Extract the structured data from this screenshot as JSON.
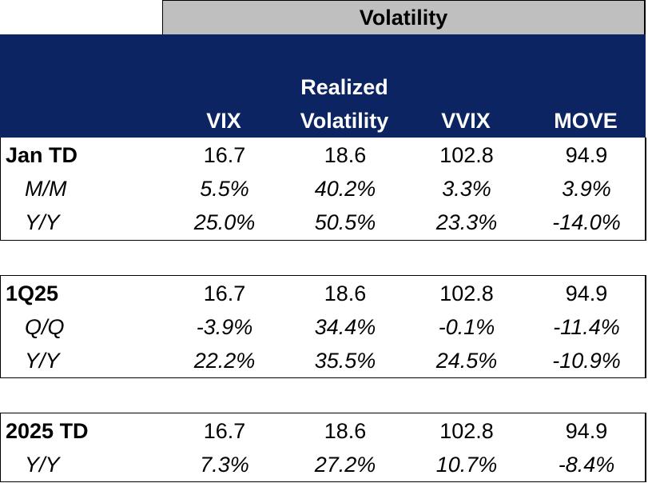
{
  "title": "Volatility",
  "columns": {
    "vix": "VIX",
    "rv_line1": "Realized",
    "rv_line2": "Volatility",
    "vvix": "VVIX",
    "move": "MOVE"
  },
  "sections": [
    {
      "label": "Jan TD",
      "values": [
        "16.7",
        "18.6",
        "102.8",
        "94.9"
      ],
      "rows": [
        {
          "label": "M/M",
          "values": [
            "5.5%",
            "40.2%",
            "3.3%",
            "3.9%"
          ]
        },
        {
          "label": "Y/Y",
          "values": [
            "25.0%",
            "50.5%",
            "23.3%",
            "-14.0%"
          ]
        }
      ]
    },
    {
      "label": "1Q25",
      "values": [
        "16.7",
        "18.6",
        "102.8",
        "94.9"
      ],
      "rows": [
        {
          "label": "Q/Q",
          "values": [
            "-3.9%",
            "34.4%",
            "-0.1%",
            "-11.4%"
          ]
        },
        {
          "label": "Y/Y",
          "values": [
            "22.2%",
            "35.5%",
            "24.5%",
            "-10.9%"
          ]
        }
      ]
    },
    {
      "label": "2025 TD",
      "values": [
        "16.7",
        "18.6",
        "102.8",
        "94.9"
      ],
      "rows": [
        {
          "label": "Y/Y",
          "values": [
            "7.3%",
            "27.2%",
            "10.7%",
            "-8.4%"
          ]
        }
      ]
    }
  ],
  "colors": {
    "header_band": "#0c2461",
    "title_bar": "#bfbfbf"
  }
}
